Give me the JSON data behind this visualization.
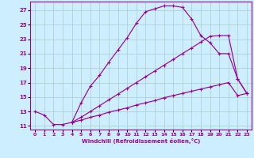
{
  "bg_color": "#cceeff",
  "line_color": "#990099",
  "grid_color": "#aacccc",
  "xlabel": "Windchill (Refroidissement éolien,°C)",
  "xlim": [
    -0.5,
    23.5
  ],
  "ylim": [
    10.5,
    28.2
  ],
  "xticks": [
    0,
    1,
    2,
    3,
    4,
    5,
    6,
    7,
    8,
    9,
    10,
    11,
    12,
    13,
    14,
    15,
    16,
    17,
    18,
    19,
    20,
    21,
    22,
    23
  ],
  "yticks": [
    11,
    13,
    15,
    17,
    19,
    21,
    23,
    25,
    27
  ],
  "curve1_x": [
    0,
    1,
    2,
    3,
    4,
    5,
    6,
    7,
    8,
    9,
    10,
    11,
    12,
    13,
    14,
    15,
    16,
    17,
    18,
    19,
    20,
    21,
    22,
    23
  ],
  "curve1_y": [
    13.0,
    12.5,
    11.2,
    11.2,
    11.5,
    14.2,
    16.5,
    18.0,
    19.8,
    21.5,
    23.2,
    25.2,
    26.8,
    27.2,
    27.6,
    27.6,
    27.4,
    25.8,
    23.5,
    22.5,
    21.0,
    21.0,
    17.5,
    15.5
  ],
  "curve2_x": [
    4,
    5,
    6,
    7,
    8,
    9,
    10,
    11,
    12,
    13,
    14,
    15,
    16,
    17,
    18,
    19,
    20,
    21,
    22,
    23
  ],
  "curve2_y": [
    11.5,
    12.2,
    13.0,
    13.8,
    14.6,
    15.4,
    16.2,
    17.0,
    17.8,
    18.6,
    19.4,
    20.2,
    21.0,
    21.8,
    22.6,
    23.4,
    23.5,
    23.5,
    17.5,
    15.5
  ],
  "curve3_x": [
    4,
    5,
    6,
    7,
    8,
    9,
    10,
    11,
    12,
    13,
    14,
    15,
    16,
    17,
    18,
    19,
    20,
    21,
    22,
    23
  ],
  "curve3_y": [
    11.5,
    11.8,
    12.2,
    12.5,
    12.9,
    13.2,
    13.5,
    13.9,
    14.2,
    14.5,
    14.9,
    15.2,
    15.5,
    15.8,
    16.1,
    16.4,
    16.7,
    17.0,
    15.2,
    15.5
  ]
}
